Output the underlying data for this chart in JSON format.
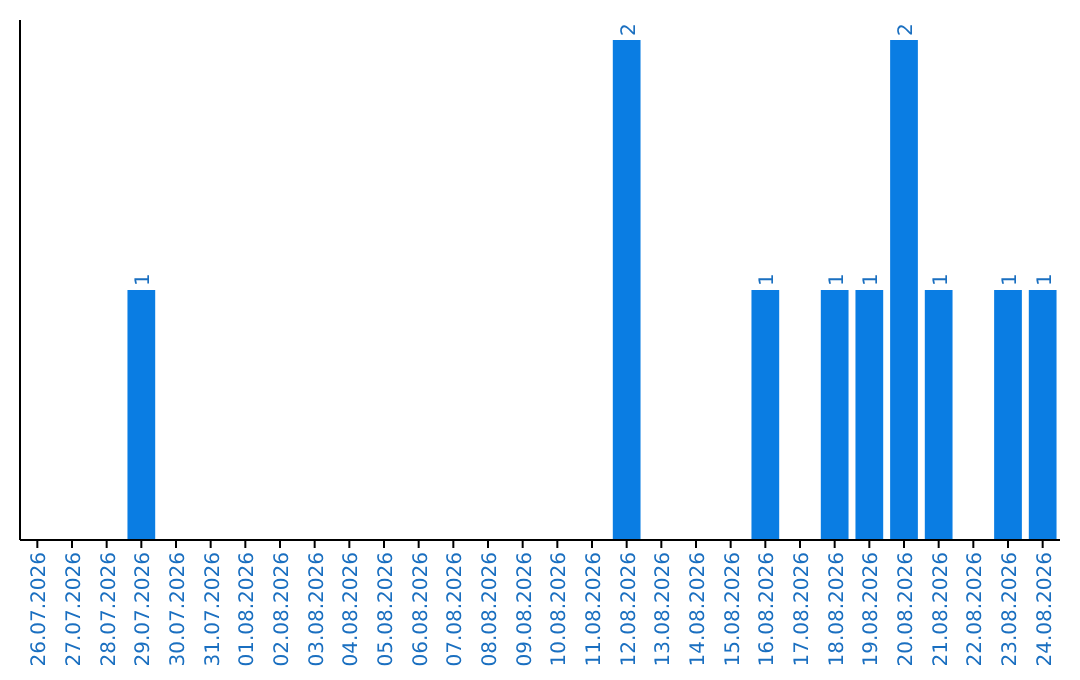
{
  "chart_data": {
    "type": "bar",
    "categories": [
      "26.07.2026",
      "27.07.2026",
      "28.07.2026",
      "29.07.2026",
      "30.07.2026",
      "31.07.2026",
      "01.08.2026",
      "02.08.2026",
      "03.08.2026",
      "04.08.2026",
      "05.08.2026",
      "06.08.2026",
      "07.08.2026",
      "08.08.2026",
      "09.08.2026",
      "10.08.2026",
      "11.08.2026",
      "12.08.2026",
      "13.08.2026",
      "14.08.2026",
      "15.08.2026",
      "16.08.2026",
      "17.08.2026",
      "18.08.2026",
      "19.08.2026",
      "20.08.2026",
      "21.08.2026",
      "22.08.2026",
      "23.08.2026",
      "24.08.2026"
    ],
    "values": [
      null,
      null,
      null,
      1,
      null,
      null,
      null,
      null,
      null,
      null,
      null,
      null,
      null,
      null,
      null,
      null,
      null,
      2,
      null,
      null,
      null,
      1,
      null,
      1,
      1,
      2,
      1,
      null,
      1,
      1
    ],
    "color": "#0a7de3",
    "data_labels": true
  }
}
